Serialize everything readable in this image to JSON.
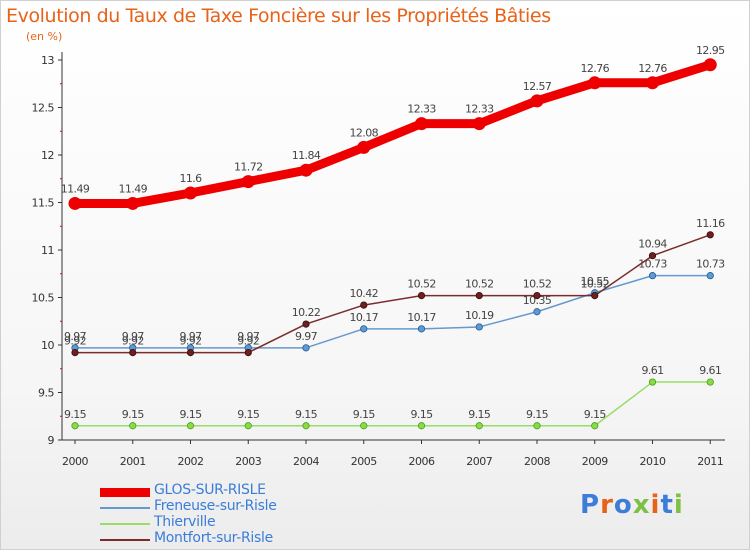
{
  "title": "Evolution du Taux de Taxe Foncière sur les Propriétés Bâties",
  "subtitle": "(en %)",
  "logo": {
    "text": "Proxiti",
    "colors": [
      "#3b7dd8",
      "#e8631a",
      "#3b7dd8",
      "#7cc242",
      "#e8631a",
      "#3b7dd8",
      "#7cc242"
    ]
  },
  "chart_data": {
    "type": "line",
    "x": [
      "2000",
      "2001",
      "2002",
      "2003",
      "2004",
      "2005",
      "2006",
      "2007",
      "2008",
      "2009",
      "2010",
      "2011"
    ],
    "ylim": [
      9,
      13
    ],
    "yticks": [
      "9",
      "9.5",
      "10",
      "10.5",
      "11",
      "11.5",
      "12",
      "12.5",
      "13"
    ],
    "legend_position": "bottom-left",
    "series": [
      {
        "name": "GLOS-SUR-RISLE",
        "color": "#ee0000",
        "values": [
          11.49,
          11.49,
          11.6,
          11.72,
          11.84,
          12.08,
          12.33,
          12.33,
          12.57,
          12.76,
          12.76,
          12.95
        ],
        "labels": [
          "11.49",
          "11.49",
          "11.6",
          "11.72",
          "11.84",
          "12.08",
          "12.33",
          "12.33",
          "12.57",
          "12.76",
          "12.76",
          "12.95"
        ]
      },
      {
        "name": "Freneuse-sur-Risle",
        "color": "#6699cc",
        "values": [
          9.97,
          9.97,
          9.97,
          9.97,
          9.97,
          10.17,
          10.17,
          10.19,
          10.35,
          10.55,
          10.73,
          10.73
        ],
        "labels": [
          "9.97",
          "9.97",
          "9.97",
          "9.97",
          "9.97",
          "10.17",
          "10.17",
          "10.19",
          "10.35",
          "10.55",
          "10.73",
          "10.73"
        ]
      },
      {
        "name": "Thierville",
        "color": "#99dd66",
        "values": [
          9.15,
          9.15,
          9.15,
          9.15,
          9.15,
          9.15,
          9.15,
          9.15,
          9.15,
          9.15,
          9.61,
          9.61
        ],
        "labels": [
          "9.15",
          "9.15",
          "9.15",
          "9.15",
          "9.15",
          "9.15",
          "9.15",
          "9.15",
          "9.15",
          "9.15",
          "9.61",
          "9.61"
        ]
      },
      {
        "name": "Montfort-sur-Risle",
        "color": "#7a2b2b",
        "values": [
          9.92,
          9.92,
          9.92,
          9.92,
          10.22,
          10.42,
          10.52,
          10.52,
          10.52,
          10.52,
          10.94,
          11.16
        ],
        "labels": [
          "9.92",
          "9.92",
          "9.92",
          "9.92",
          "10.22",
          "10.42",
          "10.52",
          "10.52",
          "10.52",
          "10.52",
          "10.94",
          "11.16"
        ]
      }
    ]
  }
}
